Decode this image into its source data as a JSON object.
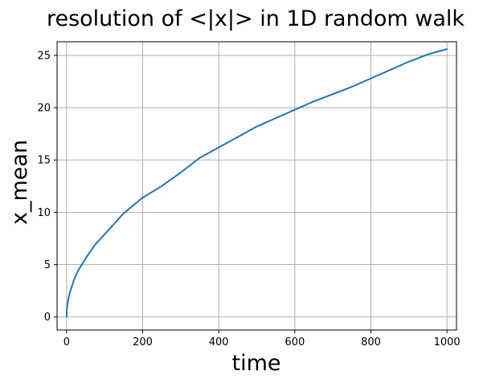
{
  "chart_data": {
    "type": "line",
    "title": "resolution of <|x|> in 1D random walk",
    "xlabel": "time",
    "ylabel": "x_mean",
    "xlim": [
      -25,
      1025
    ],
    "ylim": [
      -1.25,
      26.3
    ],
    "x_ticks": [
      0,
      200,
      400,
      600,
      800,
      1000
    ],
    "y_ticks": [
      0,
      5,
      10,
      15,
      20,
      25
    ],
    "x_tick_labels": [
      "0",
      "200",
      "400",
      "600",
      "800",
      "1000"
    ],
    "y_tick_labels": [
      "0",
      "5",
      "10",
      "15",
      "20",
      "25"
    ],
    "grid": true,
    "series": [
      {
        "color": "#1f77b4",
        "x": [
          0,
          1,
          2,
          5,
          10,
          20,
          30,
          50,
          75,
          100,
          150,
          200,
          250,
          300,
          350,
          400,
          450,
          500,
          550,
          600,
          650,
          700,
          750,
          800,
          850,
          900,
          950,
          1000
        ],
        "y": [
          0,
          0.8,
          1.1,
          1.8,
          2.5,
          3.6,
          4.4,
          5.6,
          6.9,
          7.9,
          9.9,
          11.4,
          12.5,
          13.8,
          15.2,
          16.2,
          17.2,
          18.2,
          19.0,
          19.8,
          20.6,
          21.3,
          22.0,
          22.8,
          23.6,
          24.4,
          25.1,
          25.6
        ]
      }
    ]
  }
}
